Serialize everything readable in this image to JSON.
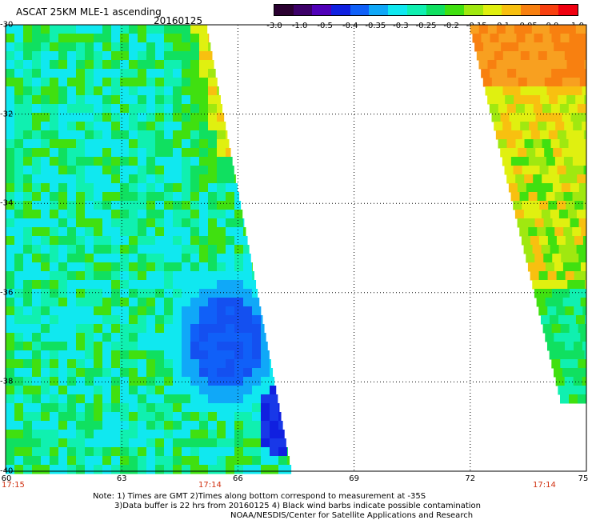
{
  "header": {
    "title": "ASCAT 25KM MLE-1 ascending",
    "date": "20160125"
  },
  "colorbar": {
    "colors": [
      "#2a0030",
      "#3c0068",
      "#5000b8",
      "#1020e0",
      "#1060f8",
      "#10a8f8",
      "#10e8f0",
      "#10f0b0",
      "#10e060",
      "#40e010",
      "#a0e810",
      "#e0f010",
      "#f8c010",
      "#f88010",
      "#f84010",
      "#f00010"
    ],
    "ticks": [
      "-3.0",
      "-1.0",
      "-0.5",
      "-0.4",
      "-0.35",
      "-0.3",
      "-0.25",
      "-0.2",
      "-0.15",
      "-0.1",
      "-0.05",
      "0.0",
      "1.0"
    ]
  },
  "axes": {
    "lat_labels": [
      "-30",
      "-32",
      "-34",
      "-36",
      "-38",
      "-40"
    ],
    "lon_labels": [
      "60",
      "63",
      "66",
      "69",
      "72",
      "75"
    ],
    "lat_range": [
      -40,
      -30
    ],
    "lon_range": [
      60,
      75
    ],
    "grid": true
  },
  "times": [
    "17:15",
    "17:14",
    "17:14"
  ],
  "notes": {
    "line1": "Note: 1) Times are GMT 2)Times along bottom correspond to measurement at -35S",
    "line2": "3)Data buffer is 22 hrs from 20160125 4) Black wind barbs indicate possible contamination",
    "line3": "NOAA/NESDIS/Center for Satellite Applications and Research"
  },
  "swaths": [
    {
      "name": "left swath",
      "lon_start": 60,
      "lon_end_top": 65.2,
      "lon_end_bottom": 67.4
    },
    {
      "name": "right swath",
      "lon_start_top": 72.0,
      "lon_start_bottom": 74.8,
      "lon_end": 75
    }
  ]
}
